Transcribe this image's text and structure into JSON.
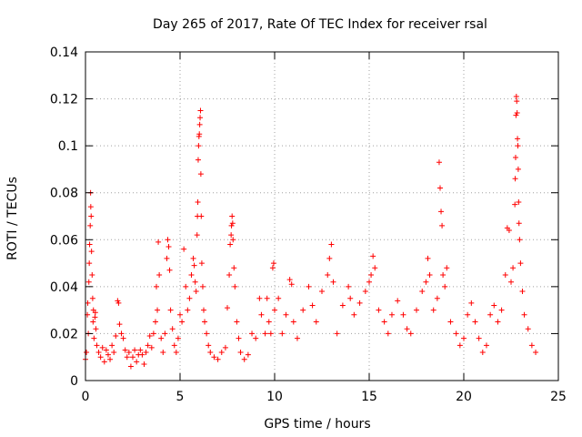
{
  "chart_data": {
    "type": "scatter",
    "title": "Day 265 of 2017, Rate Of TEC Index for receiver rsal",
    "xlabel": "GPS time / hours",
    "ylabel": "ROTI / TECUs",
    "xlim": [
      0,
      25
    ],
    "ylim": [
      0,
      0.14
    ],
    "xticks": [
      0,
      5,
      10,
      15,
      20,
      25
    ],
    "yticks": [
      0,
      0.02,
      0.04,
      0.06,
      0.08,
      0.1,
      0.12,
      0.14
    ],
    "xtick_labels": [
      "0",
      "5",
      "10",
      "15",
      "20",
      "25"
    ],
    "ytick_labels": [
      "0",
      "0.02",
      "0.04",
      "0.06",
      "0.08",
      "0.1",
      "0.12",
      "0.14"
    ],
    "grid": true,
    "legend": "none",
    "marker": "plus",
    "color": "#ff0000",
    "points": [
      [
        0.0,
        0.009
      ],
      [
        0.05,
        0.012
      ],
      [
        0.1,
        0.028
      ],
      [
        0.12,
        0.033
      ],
      [
        0.15,
        0.02
      ],
      [
        0.18,
        0.042
      ],
      [
        0.2,
        0.05
      ],
      [
        0.22,
        0.058
      ],
      [
        0.25,
        0.066
      ],
      [
        0.27,
        0.08
      ],
      [
        0.28,
        0.074
      ],
      [
        0.3,
        0.07
      ],
      [
        0.32,
        0.055
      ],
      [
        0.35,
        0.045
      ],
      [
        0.38,
        0.035
      ],
      [
        0.4,
        0.025
      ],
      [
        0.42,
        0.03
      ],
      [
        0.45,
        0.018
      ],
      [
        0.5,
        0.027
      ],
      [
        0.52,
        0.029
      ],
      [
        0.55,
        0.022
      ],
      [
        0.6,
        0.015
      ],
      [
        0.7,
        0.012
      ],
      [
        0.8,
        0.01
      ],
      [
        0.9,
        0.014
      ],
      [
        1.0,
        0.008
      ],
      [
        1.1,
        0.013
      ],
      [
        1.2,
        0.011
      ],
      [
        1.3,
        0.009
      ],
      [
        1.4,
        0.015
      ],
      [
        1.5,
        0.012
      ],
      [
        1.6,
        0.019
      ],
      [
        1.7,
        0.034
      ],
      [
        1.75,
        0.033
      ],
      [
        1.8,
        0.024
      ],
      [
        1.9,
        0.02
      ],
      [
        2.0,
        0.018
      ],
      [
        2.1,
        0.013
      ],
      [
        2.2,
        0.01
      ],
      [
        2.3,
        0.012
      ],
      [
        2.4,
        0.006
      ],
      [
        2.5,
        0.01
      ],
      [
        2.6,
        0.013
      ],
      [
        2.7,
        0.008
      ],
      [
        2.8,
        0.011
      ],
      [
        2.9,
        0.013
      ],
      [
        3.0,
        0.011
      ],
      [
        3.1,
        0.007
      ],
      [
        3.2,
        0.012
      ],
      [
        3.3,
        0.015
      ],
      [
        3.4,
        0.019
      ],
      [
        3.5,
        0.014
      ],
      [
        3.6,
        0.02
      ],
      [
        3.7,
        0.025
      ],
      [
        3.75,
        0.04
      ],
      [
        3.8,
        0.03
      ],
      [
        3.85,
        0.059
      ],
      [
        3.9,
        0.045
      ],
      [
        4.0,
        0.018
      ],
      [
        4.1,
        0.012
      ],
      [
        4.2,
        0.02
      ],
      [
        4.3,
        0.052
      ],
      [
        4.35,
        0.06
      ],
      [
        4.4,
        0.057
      ],
      [
        4.45,
        0.047
      ],
      [
        4.5,
        0.03
      ],
      [
        4.6,
        0.022
      ],
      [
        4.7,
        0.015
      ],
      [
        4.8,
        0.012
      ],
      [
        4.9,
        0.018
      ],
      [
        5.0,
        0.028
      ],
      [
        5.1,
        0.025
      ],
      [
        5.2,
        0.056
      ],
      [
        5.3,
        0.04
      ],
      [
        5.4,
        0.03
      ],
      [
        5.5,
        0.035
      ],
      [
        5.6,
        0.045
      ],
      [
        5.7,
        0.052
      ],
      [
        5.75,
        0.049
      ],
      [
        5.8,
        0.042
      ],
      [
        5.85,
        0.038
      ],
      [
        5.9,
        0.062
      ],
      [
        5.92,
        0.07
      ],
      [
        5.94,
        0.076
      ],
      [
        5.96,
        0.094
      ],
      [
        5.98,
        0.1
      ],
      [
        6.0,
        0.104
      ],
      [
        6.02,
        0.105
      ],
      [
        6.04,
        0.109
      ],
      [
        6.06,
        0.112
      ],
      [
        6.08,
        0.115
      ],
      [
        6.1,
        0.088
      ],
      [
        6.12,
        0.07
      ],
      [
        6.15,
        0.05
      ],
      [
        6.2,
        0.04
      ],
      [
        6.25,
        0.03
      ],
      [
        6.3,
        0.025
      ],
      [
        6.4,
        0.02
      ],
      [
        6.5,
        0.015
      ],
      [
        6.6,
        0.012
      ],
      [
        6.8,
        0.01
      ],
      [
        7.0,
        0.009
      ],
      [
        7.2,
        0.012
      ],
      [
        7.4,
        0.014
      ],
      [
        7.5,
        0.031
      ],
      [
        7.6,
        0.045
      ],
      [
        7.65,
        0.058
      ],
      [
        7.7,
        0.062
      ],
      [
        7.72,
        0.066
      ],
      [
        7.75,
        0.07
      ],
      [
        7.78,
        0.067
      ],
      [
        7.8,
        0.06
      ],
      [
        7.85,
        0.048
      ],
      [
        7.9,
        0.04
      ],
      [
        8.0,
        0.025
      ],
      [
        8.1,
        0.018
      ],
      [
        8.2,
        0.012
      ],
      [
        8.4,
        0.009
      ],
      [
        8.6,
        0.011
      ],
      [
        8.8,
        0.02
      ],
      [
        9.0,
        0.018
      ],
      [
        9.2,
        0.035
      ],
      [
        9.3,
        0.028
      ],
      [
        9.5,
        0.02
      ],
      [
        9.6,
        0.035
      ],
      [
        9.7,
        0.025
      ],
      [
        9.8,
        0.02
      ],
      [
        9.9,
        0.048
      ],
      [
        9.95,
        0.05
      ],
      [
        10.0,
        0.03
      ],
      [
        10.2,
        0.035
      ],
      [
        10.4,
        0.02
      ],
      [
        10.6,
        0.028
      ],
      [
        10.8,
        0.043
      ],
      [
        10.9,
        0.041
      ],
      [
        11.0,
        0.025
      ],
      [
        11.2,
        0.018
      ],
      [
        11.5,
        0.03
      ],
      [
        11.8,
        0.04
      ],
      [
        12.0,
        0.032
      ],
      [
        12.2,
        0.025
      ],
      [
        12.5,
        0.038
      ],
      [
        12.8,
        0.045
      ],
      [
        12.9,
        0.052
      ],
      [
        13.0,
        0.058
      ],
      [
        13.1,
        0.042
      ],
      [
        13.3,
        0.02
      ],
      [
        13.6,
        0.032
      ],
      [
        13.9,
        0.04
      ],
      [
        14.0,
        0.035
      ],
      [
        14.2,
        0.028
      ],
      [
        14.5,
        0.033
      ],
      [
        14.8,
        0.038
      ],
      [
        15.0,
        0.042
      ],
      [
        15.1,
        0.045
      ],
      [
        15.2,
        0.053
      ],
      [
        15.3,
        0.048
      ],
      [
        15.5,
        0.03
      ],
      [
        15.8,
        0.025
      ],
      [
        16.0,
        0.02
      ],
      [
        16.2,
        0.028
      ],
      [
        16.5,
        0.034
      ],
      [
        16.8,
        0.028
      ],
      [
        17.0,
        0.022
      ],
      [
        17.2,
        0.02
      ],
      [
        17.5,
        0.03
      ],
      [
        17.8,
        0.038
      ],
      [
        18.0,
        0.042
      ],
      [
        18.1,
        0.052
      ],
      [
        18.2,
        0.045
      ],
      [
        18.4,
        0.03
      ],
      [
        18.6,
        0.035
      ],
      [
        18.7,
        0.093
      ],
      [
        18.75,
        0.082
      ],
      [
        18.8,
        0.072
      ],
      [
        18.85,
        0.066
      ],
      [
        18.9,
        0.045
      ],
      [
        19.0,
        0.04
      ],
      [
        19.1,
        0.048
      ],
      [
        19.3,
        0.025
      ],
      [
        19.6,
        0.02
      ],
      [
        19.8,
        0.015
      ],
      [
        20.0,
        0.018
      ],
      [
        20.2,
        0.028
      ],
      [
        20.4,
        0.033
      ],
      [
        20.6,
        0.025
      ],
      [
        20.8,
        0.018
      ],
      [
        21.0,
        0.012
      ],
      [
        21.2,
        0.015
      ],
      [
        21.4,
        0.028
      ],
      [
        21.6,
        0.032
      ],
      [
        21.8,
        0.025
      ],
      [
        22.0,
        0.03
      ],
      [
        22.2,
        0.045
      ],
      [
        22.3,
        0.065
      ],
      [
        22.4,
        0.064
      ],
      [
        22.5,
        0.042
      ],
      [
        22.6,
        0.048
      ],
      [
        22.7,
        0.075
      ],
      [
        22.72,
        0.086
      ],
      [
        22.74,
        0.095
      ],
      [
        22.76,
        0.113
      ],
      [
        22.78,
        0.121
      ],
      [
        22.8,
        0.119
      ],
      [
        22.82,
        0.114
      ],
      [
        22.84,
        0.103
      ],
      [
        22.86,
        0.1
      ],
      [
        22.88,
        0.09
      ],
      [
        22.9,
        0.076
      ],
      [
        22.92,
        0.067
      ],
      [
        22.95,
        0.06
      ],
      [
        23.0,
        0.05
      ],
      [
        23.1,
        0.038
      ],
      [
        23.2,
        0.028
      ],
      [
        23.4,
        0.022
      ],
      [
        23.6,
        0.015
      ],
      [
        23.8,
        0.012
      ]
    ]
  }
}
